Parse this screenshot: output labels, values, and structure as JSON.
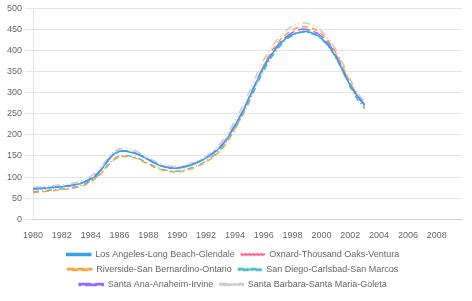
{
  "chart_data": {
    "type": "line",
    "x": [
      1980,
      1980.25,
      1980.5,
      1980.75,
      1981,
      1981.25,
      1981.5,
      1981.75,
      1982,
      1982.25,
      1982.5,
      1982.75,
      1983,
      1983.25,
      1983.5,
      1983.75,
      1984,
      1984.25,
      1984.5,
      1984.75,
      1985,
      1985.25,
      1985.5,
      1985.75,
      1986,
      1986.25,
      1986.5,
      1986.75,
      1987,
      1987.25,
      1987.5,
      1987.75,
      1988,
      1988.25,
      1988.5,
      1988.75,
      1989,
      1989.25,
      1989.5,
      1989.75,
      1990,
      1990.25,
      1990.5,
      1990.75,
      1991,
      1991.25,
      1991.5,
      1991.75,
      1992,
      1992.25,
      1992.5,
      1992.75,
      1993,
      1993.25,
      1993.5,
      1993.75,
      1994,
      1994.25,
      1994.5,
      1994.75,
      1995,
      1995.25,
      1995.5,
      1995.75,
      1996,
      1996.25,
      1996.5,
      1996.75,
      1997,
      1997.25,
      1997.5,
      1997.75,
      1998,
      1998.25,
      1998.5,
      1998.75,
      1999,
      1999.25,
      1999.5,
      1999.75,
      2000,
      2000.25,
      2000.5,
      2000.75,
      2001,
      2001.25,
      2001.5,
      2001.75,
      2002,
      2002.25,
      2002.5,
      2002.75,
      2003
    ],
    "series": [
      {
        "name": "Los Angeles-Long Beach-Glendale",
        "line_style": "solid",
        "values": [
          72,
          73,
          73,
          74,
          74,
          75,
          75,
          76,
          77,
          78,
          79,
          80,
          82,
          84,
          87,
          90,
          95,
          100,
          108,
          118,
          130,
          142,
          152,
          158,
          161,
          162,
          161,
          159,
          157,
          154,
          150,
          146,
          141,
          136,
          132,
          128,
          125,
          123,
          121,
          121,
          121,
          122,
          124,
          126,
          129,
          132,
          136,
          140,
          145,
          150,
          156,
          163,
          171,
          181,
          193,
          207,
          222,
          237,
          253,
          270,
          289,
          308,
          326,
          344,
          360,
          375,
          388,
          400,
          411,
          420,
          428,
          434,
          438,
          441,
          443,
          445,
          445,
          443,
          440,
          436,
          429,
          421,
          411,
          399,
          385,
          369,
          351,
          334,
          318,
          304,
          291,
          280,
          270
        ]
      },
      {
        "name": "Oxnard-Thousand Oaks-Ventura",
        "line_style": "dotted",
        "values": [
          70,
          71,
          72,
          72,
          73,
          74,
          75,
          76,
          77,
          78,
          79,
          80,
          82,
          84,
          87,
          90,
          95,
          100,
          108,
          117,
          128,
          139,
          150,
          156,
          160,
          162,
          161,
          159,
          157,
          154,
          150,
          146,
          141,
          136,
          132,
          128,
          125,
          123,
          121,
          121,
          121,
          122,
          124,
          126,
          129,
          132,
          136,
          140,
          145,
          150,
          157,
          164,
          172,
          182,
          194,
          207,
          221,
          236,
          251,
          267,
          285,
          304,
          322,
          340,
          357,
          372,
          386,
          398,
          409,
          419,
          427,
          434,
          439,
          442,
          444,
          445,
          444,
          443,
          440,
          436,
          429,
          420,
          410,
          398,
          384,
          368,
          350,
          332,
          315,
          301,
          289,
          278,
          268
        ]
      },
      {
        "name": "Riverside-San Bernardino-Ontario",
        "line_style": "dashed",
        "values": [
          63,
          64,
          65,
          65,
          66,
          67,
          68,
          69,
          70,
          71,
          72,
          73,
          75,
          77,
          80,
          84,
          89,
          94,
          101,
          109,
          119,
          129,
          138,
          144,
          147,
          149,
          149,
          148,
          146,
          143,
          139,
          135,
          130,
          126,
          122,
          119,
          116,
          114,
          113,
          112,
          112,
          113,
          115,
          117,
          120,
          123,
          127,
          131,
          136,
          141,
          148,
          155,
          163,
          173,
          185,
          199,
          214,
          230,
          247,
          265,
          285,
          306,
          326,
          347,
          365,
          382,
          396,
          409,
          420,
          430,
          437,
          444,
          449,
          453,
          456,
          457,
          456,
          454,
          451,
          447,
          440,
          432,
          422,
          410,
          395,
          378,
          360,
          341,
          323,
          307,
          293,
          281,
          270
        ]
      },
      {
        "name": "San Diego-Carlsbad-San Marcos",
        "line_style": "dashdot",
        "values": [
          65,
          66,
          67,
          67,
          68,
          69,
          70,
          71,
          72,
          73,
          74,
          75,
          77,
          79,
          82,
          86,
          91,
          96,
          103,
          111,
          121,
          131,
          140,
          146,
          150,
          152,
          151,
          150,
          148,
          145,
          141,
          137,
          132,
          128,
          124,
          121,
          118,
          116,
          115,
          114,
          114,
          115,
          117,
          119,
          122,
          125,
          129,
          133,
          138,
          143,
          150,
          157,
          165,
          175,
          187,
          200,
          214,
          229,
          245,
          261,
          279,
          298,
          317,
          335,
          352,
          368,
          382,
          394,
          405,
          415,
          423,
          431,
          436,
          440,
          443,
          444,
          443,
          441,
          438,
          434,
          427,
          419,
          409,
          397,
          383,
          367,
          349,
          331,
          313,
          298,
          284,
          273,
          262
        ]
      },
      {
        "name": "Santa Ana-Anaheim-Irvine",
        "line_style": "longdash",
        "values": [
          71,
          72,
          73,
          73,
          74,
          75,
          76,
          77,
          78,
          79,
          80,
          81,
          83,
          85,
          88,
          92,
          97,
          102,
          110,
          119,
          130,
          141,
          151,
          157,
          161,
          162,
          162,
          160,
          158,
          155,
          151,
          147,
          142,
          137,
          133,
          129,
          126,
          124,
          122,
          122,
          122,
          123,
          125,
          127,
          130,
          133,
          137,
          141,
          146,
          151,
          158,
          165,
          173,
          183,
          195,
          209,
          223,
          238,
          254,
          271,
          290,
          309,
          328,
          346,
          363,
          378,
          391,
          403,
          414,
          423,
          431,
          438,
          443,
          447,
          450,
          451,
          450,
          448,
          445,
          441,
          434,
          426,
          416,
          404,
          390,
          374,
          356,
          338,
          321,
          307,
          294,
          283,
          272
        ]
      },
      {
        "name": "Santa Barbara-Santa Maria-Goleta",
        "line_style": "dashdotdot",
        "values": [
          75,
          76,
          77,
          77,
          78,
          79,
          80,
          81,
          82,
          83,
          84,
          85,
          87,
          90,
          93,
          97,
          102,
          108,
          116,
          125,
          136,
          147,
          157,
          163,
          167,
          168,
          168,
          166,
          164,
          160,
          156,
          151,
          146,
          141,
          137,
          133,
          130,
          127,
          126,
          125,
          125,
          126,
          128,
          130,
          133,
          136,
          140,
          145,
          150,
          156,
          163,
          171,
          180,
          191,
          204,
          218,
          233,
          249,
          266,
          284,
          303,
          323,
          342,
          361,
          378,
          393,
          406,
          418,
          429,
          438,
          446,
          453,
          458,
          462,
          465,
          466,
          465,
          462,
          458,
          453,
          446,
          438,
          428,
          416,
          402,
          386,
          368,
          350,
          331,
          315,
          301,
          289,
          278
        ]
      }
    ],
    "xlim": [
      1980,
      2009.75
    ],
    "ylim": [
      0,
      500
    ],
    "xticks": [
      1980,
      1982,
      1984,
      1986,
      1988,
      1990,
      1992,
      1994,
      1996,
      1998,
      2000,
      2002,
      2004,
      2006,
      2008
    ],
    "yticks": [
      0,
      50,
      100,
      150,
      200,
      250,
      300,
      350,
      400,
      450,
      500
    ],
    "grid": "y",
    "legend": "bottom"
  }
}
